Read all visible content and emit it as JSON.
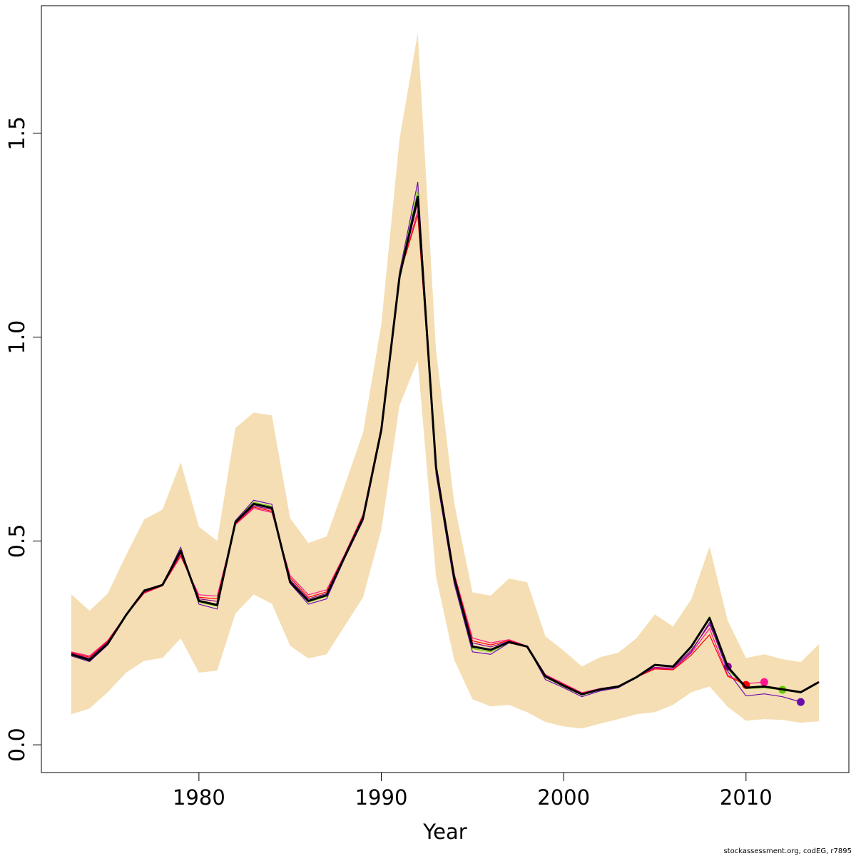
{
  "chart_data": {
    "type": "line",
    "x_label": "Year",
    "footnote": "stockassessment.org, codEG, r7895",
    "x": [
      1973,
      1974,
      1975,
      1976,
      1977,
      1978,
      1979,
      1980,
      1981,
      1982,
      1983,
      1984,
      1985,
      1986,
      1987,
      1988,
      1989,
      1990,
      1991,
      1992,
      1993,
      1994,
      1995,
      1996,
      1997,
      1998,
      1999,
      2000,
      2001,
      2002,
      2003,
      2004,
      2005,
      2006,
      2007,
      2008,
      2009,
      2010,
      2011,
      2012,
      2013,
      2014
    ],
    "xlim": [
      1971.36,
      2015.64
    ],
    "xticks": [
      1980,
      1990,
      2000,
      2010
    ],
    "ylim": [
      -0.068,
      1.813
    ],
    "yticks": [
      {
        "value": 0,
        "label": "0.0"
      },
      0.5,
      {
        "value": 1,
        "label": "1.0"
      },
      1.5
    ],
    "band": {
      "color": "#f5deb3",
      "upper": [
        0.369,
        0.329,
        0.371,
        0.465,
        0.553,
        0.577,
        0.693,
        0.535,
        0.5,
        0.777,
        0.815,
        0.808,
        0.556,
        0.495,
        0.511,
        0.637,
        0.766,
        1.031,
        1.486,
        1.746,
        0.969,
        0.593,
        0.374,
        0.366,
        0.408,
        0.399,
        0.266,
        0.231,
        0.192,
        0.215,
        0.226,
        0.262,
        0.32,
        0.29,
        0.357,
        0.486,
        0.304,
        0.213,
        0.222,
        0.21,
        0.203,
        0.247
      ],
      "lower": [
        0.075,
        0.089,
        0.129,
        0.177,
        0.206,
        0.213,
        0.261,
        0.177,
        0.182,
        0.322,
        0.369,
        0.346,
        0.243,
        0.212,
        0.222,
        0.292,
        0.362,
        0.527,
        0.833,
        0.943,
        0.413,
        0.208,
        0.112,
        0.094,
        0.098,
        0.08,
        0.056,
        0.045,
        0.04,
        0.052,
        0.063,
        0.075,
        0.08,
        0.098,
        0.129,
        0.143,
        0.093,
        0.059,
        0.063,
        0.061,
        0.054,
        0.058
      ]
    },
    "series": [
      {
        "color": "#6a0dad",
        "values": [
          0.218,
          0.204,
          0.245,
          0.318,
          0.38,
          0.392,
          0.485,
          0.345,
          0.333,
          0.55,
          0.6,
          0.59,
          0.396,
          0.345,
          0.358,
          0.458,
          0.55,
          0.77,
          1.16,
          1.38,
          0.665,
          0.395,
          0.228,
          0.222,
          0.25,
          0.241,
          0.16,
          0.14,
          0.118,
          0.132,
          0.14,
          0.165,
          0.19,
          0.185,
          0.228,
          0.3,
          0.18,
          0.12,
          0.125,
          0.118,
          0.105,
          null
        ]
      },
      {
        "color": "#66cc00",
        "values": [
          0.22,
          0.206,
          0.247,
          0.318,
          0.379,
          0.392,
          0.48,
          0.35,
          0.34,
          0.548,
          0.595,
          0.585,
          0.398,
          0.35,
          0.364,
          0.46,
          0.553,
          0.775,
          1.155,
          1.36,
          0.675,
          0.403,
          0.236,
          0.228,
          0.251,
          0.241,
          0.165,
          0.143,
          0.122,
          0.135,
          0.142,
          0.166,
          0.195,
          0.192,
          0.238,
          0.315,
          0.185,
          0.138,
          0.14,
          0.135,
          null,
          null
        ]
      },
      {
        "color": "#ff1493",
        "values": [
          0.228,
          0.218,
          0.256,
          0.318,
          0.372,
          0.39,
          0.462,
          0.368,
          0.365,
          0.54,
          0.58,
          0.57,
          0.415,
          0.368,
          0.38,
          0.468,
          0.565,
          0.78,
          1.15,
          1.31,
          0.69,
          0.42,
          0.262,
          0.25,
          0.258,
          0.242,
          0.172,
          0.15,
          0.128,
          0.138,
          0.144,
          0.166,
          0.188,
          0.185,
          0.225,
          0.285,
          0.17,
          0.15,
          0.154,
          null,
          null,
          null
        ]
      },
      {
        "color": "#ff0000",
        "values": [
          0.226,
          0.215,
          0.254,
          0.318,
          0.373,
          0.39,
          0.465,
          0.362,
          0.358,
          0.542,
          0.583,
          0.573,
          0.41,
          0.362,
          0.375,
          0.465,
          0.562,
          0.778,
          1.152,
          1.3,
          0.688,
          0.416,
          0.255,
          0.245,
          0.256,
          0.242,
          0.17,
          0.148,
          0.126,
          0.137,
          0.143,
          0.166,
          0.186,
          0.184,
          0.22,
          0.27,
          0.168,
          0.147,
          null,
          null,
          null,
          null
        ]
      },
      {
        "color": "#8b008b",
        "values": [
          0.224,
          0.212,
          0.252,
          0.318,
          0.375,
          0.391,
          0.47,
          0.358,
          0.352,
          0.544,
          0.586,
          0.577,
          0.405,
          0.358,
          0.371,
          0.463,
          0.559,
          0.776,
          1.15,
          1.33,
          0.684,
          0.412,
          0.25,
          0.24,
          0.254,
          0.241,
          0.168,
          0.146,
          0.125,
          0.136,
          0.143,
          0.166,
          0.19,
          0.188,
          0.232,
          0.295,
          0.192,
          null,
          null,
          null,
          null,
          null
        ]
      },
      {
        "color": "#000000",
        "values": [
          0.222,
          0.208,
          0.248,
          0.318,
          0.378,
          0.392,
          0.476,
          0.353,
          0.343,
          0.546,
          0.591,
          0.581,
          0.399,
          0.353,
          0.367,
          0.462,
          0.556,
          0.772,
          1.148,
          1.344,
          0.681,
          0.409,
          0.241,
          0.233,
          0.252,
          0.241,
          0.168,
          0.145,
          0.124,
          0.136,
          0.143,
          0.166,
          0.196,
          0.192,
          0.241,
          0.311,
          0.191,
          0.14,
          0.143,
          0.136,
          0.129,
          0.154
        ]
      }
    ]
  }
}
